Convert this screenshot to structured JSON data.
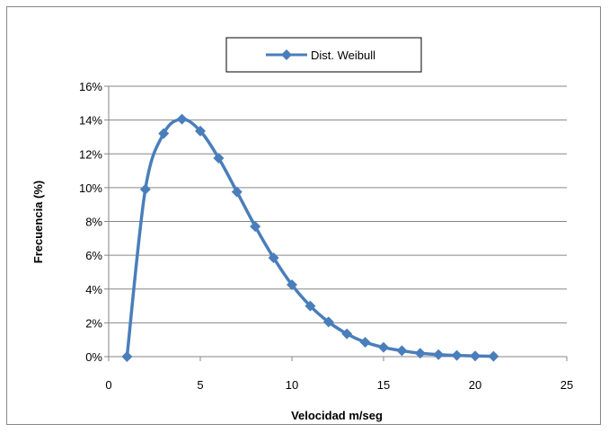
{
  "chart_data": {
    "type": "line",
    "title": "",
    "xlabel": "Velocidad m/seg",
    "ylabel": "Frecuencia (%)",
    "xlim": [
      0,
      25
    ],
    "ylim": [
      0,
      16
    ],
    "x_ticks": [
      "0",
      "5",
      "10",
      "15",
      "20",
      "25"
    ],
    "y_ticks": [
      "0%",
      "2%",
      "4%",
      "6%",
      "8%",
      "10%",
      "12%",
      "14%",
      "16%"
    ],
    "grid": true,
    "legend": "top-center",
    "series": [
      {
        "name": "Dist. Weibull",
        "color": "#4a7ebb",
        "marker": "diamond",
        "x": [
          1,
          2,
          3,
          4,
          5,
          6,
          7,
          8,
          9,
          10,
          11,
          12,
          13,
          14,
          15,
          16,
          17,
          18,
          19,
          20,
          21
        ],
        "y": [
          0,
          9.9,
          13.2,
          14.05,
          13.35,
          11.75,
          9.75,
          7.7,
          5.85,
          4.25,
          3.0,
          2.05,
          1.35,
          0.85,
          0.55,
          0.35,
          0.2,
          0.12,
          0.07,
          0.04,
          0.02
        ]
      }
    ]
  }
}
